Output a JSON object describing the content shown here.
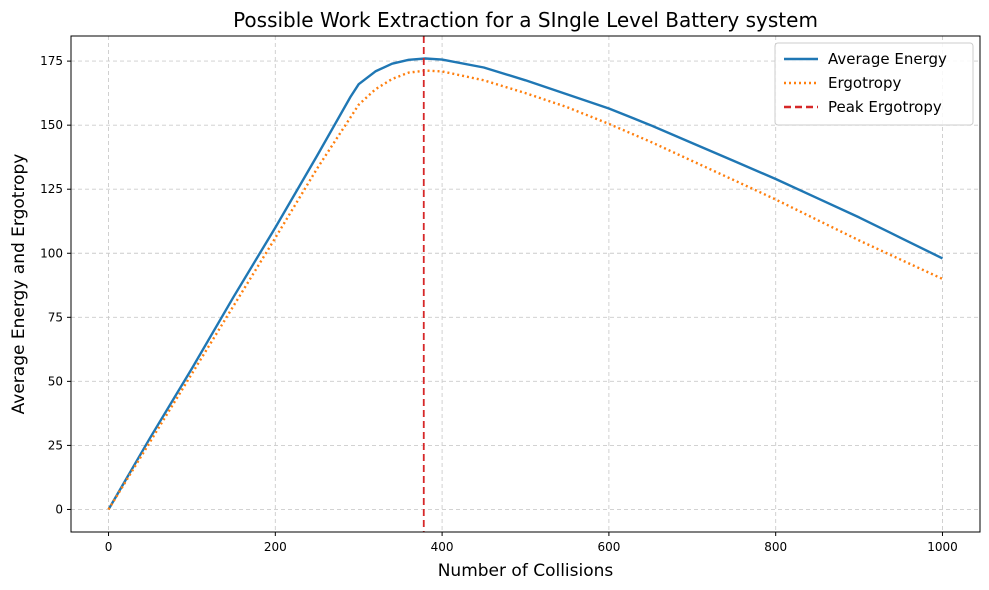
{
  "chart_data": {
    "type": "line",
    "title": "Possible Work Extraction for a SIngle Level Battery system",
    "xlabel": "Number of Collisions",
    "ylabel": "Average Energy and Ergotropy",
    "xlim": [
      -45,
      1045
    ],
    "ylim": [
      -8.8,
      184.8
    ],
    "xticks": [
      0,
      200,
      400,
      600,
      800,
      1000
    ],
    "yticks": [
      0,
      25,
      50,
      75,
      100,
      125,
      150,
      175
    ],
    "grid": true,
    "legend_position": "top-right",
    "x": [
      0,
      50,
      100,
      150,
      200,
      250,
      290,
      300,
      320,
      340,
      360,
      380,
      400,
      450,
      500,
      550,
      600,
      650,
      700,
      750,
      800,
      850,
      900,
      950,
      1000
    ],
    "series": [
      {
        "name": "Average Energy",
        "color": "#1f77b4",
        "style": "solid",
        "values": [
          0,
          28,
          55,
          83,
          110,
          138,
          161,
          166,
          171,
          174,
          175.5,
          176,
          175.6,
          172.5,
          167.5,
          162,
          156.5,
          150,
          143,
          136,
          129,
          121.5,
          114,
          106,
          98
        ]
      },
      {
        "name": "Ergotropy",
        "color": "#ff7f0e",
        "style": "dotted",
        "values": [
          0,
          26.5,
          53,
          79.5,
          106,
          133,
          153,
          158,
          164,
          168,
          170.5,
          171.3,
          171,
          167.5,
          162.5,
          157,
          150.5,
          143.5,
          136,
          128.5,
          121,
          113,
          105,
          97.5,
          90
        ]
      }
    ],
    "vlines": [
      {
        "name": "Peak Ergotropy",
        "x": 378,
        "color": "#d62728",
        "style": "dashed"
      }
    ]
  }
}
